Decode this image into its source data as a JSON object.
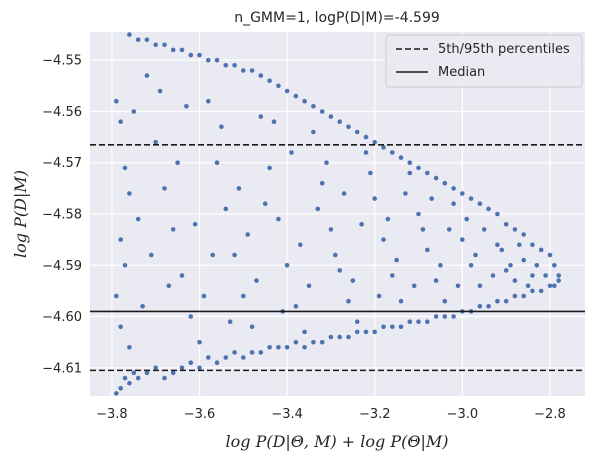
{
  "chart_data": {
    "type": "scatter",
    "title": "n_GMM=1, logP(D|M)=-4.599",
    "xlabel": "log P(D|Θ, M) + log P(Θ|M)",
    "ylabel": "log P(D|M)",
    "xlim": [
      -3.85,
      -2.72
    ],
    "ylim": [
      -4.6155,
      -4.5445
    ],
    "xticks": [
      -3.8,
      -3.6,
      -3.4,
      -3.2,
      -3.0,
      -2.8
    ],
    "xtick_labels": [
      "−3.8",
      "−3.6",
      "−3.4",
      "−3.2",
      "−3.0",
      "−2.8"
    ],
    "yticks": [
      -4.61,
      -4.6,
      -4.59,
      -4.58,
      -4.57,
      -4.56,
      -4.55
    ],
    "ytick_labels": [
      "−4.61",
      "−4.60",
      "−4.59",
      "−4.58",
      "−4.57",
      "−4.56",
      "−4.55"
    ],
    "grid": true,
    "legend_position": "top-right",
    "reference_lines": [
      {
        "name": "5th/95th percentiles",
        "y": -4.5665,
        "style": "dashed"
      },
      {
        "name": "5th/95th percentiles",
        "y": -4.6105,
        "style": "dashed"
      },
      {
        "name": "Median",
        "y": -4.599,
        "style": "solid"
      }
    ],
    "legend": [
      {
        "label": "5th/95th percentiles",
        "style": "dashed"
      },
      {
        "label": "Median",
        "style": "solid"
      }
    ],
    "colors": {
      "points": "#4c72b0",
      "plot_background": "#eaeaf2",
      "reference_lines": "#1a1a1a"
    },
    "series": [
      {
        "values_note_xy": "x,y pairs",
        "points": [
          [
            -3.79,
            -4.615
          ],
          [
            -3.78,
            -4.614
          ],
          [
            -3.77,
            -4.612
          ],
          [
            -3.76,
            -4.613
          ],
          [
            -3.75,
            -4.611
          ],
          [
            -3.74,
            -4.612
          ],
          [
            -3.72,
            -4.611
          ],
          [
            -3.7,
            -4.61
          ],
          [
            -3.68,
            -4.612
          ],
          [
            -3.66,
            -4.611
          ],
          [
            -3.64,
            -4.61
          ],
          [
            -3.62,
            -4.609
          ],
          [
            -3.6,
            -4.61
          ],
          [
            -3.58,
            -4.608
          ],
          [
            -3.56,
            -4.609
          ],
          [
            -3.54,
            -4.608
          ],
          [
            -3.52,
            -4.607
          ],
          [
            -3.5,
            -4.608
          ],
          [
            -3.48,
            -4.607
          ],
          [
            -3.46,
            -4.607
          ],
          [
            -3.44,
            -4.606
          ],
          [
            -3.42,
            -4.606
          ],
          [
            -3.4,
            -4.606
          ],
          [
            -3.38,
            -4.605
          ],
          [
            -3.36,
            -4.606
          ],
          [
            -3.34,
            -4.605
          ],
          [
            -3.32,
            -4.605
          ],
          [
            -3.3,
            -4.604
          ],
          [
            -3.28,
            -4.604
          ],
          [
            -3.26,
            -4.604
          ],
          [
            -3.24,
            -4.603
          ],
          [
            -3.22,
            -4.603
          ],
          [
            -3.2,
            -4.603
          ],
          [
            -3.18,
            -4.602
          ],
          [
            -3.16,
            -4.602
          ],
          [
            -3.14,
            -4.602
          ],
          [
            -3.12,
            -4.601
          ],
          [
            -3.1,
            -4.601
          ],
          [
            -3.08,
            -4.601
          ],
          [
            -3.06,
            -4.6
          ],
          [
            -3.04,
            -4.6
          ],
          [
            -3.02,
            -4.6
          ],
          [
            -3.0,
            -4.599
          ],
          [
            -2.98,
            -4.599
          ],
          [
            -2.96,
            -4.598
          ],
          [
            -2.94,
            -4.598
          ],
          [
            -2.92,
            -4.597
          ],
          [
            -2.9,
            -4.597
          ],
          [
            -2.88,
            -4.596
          ],
          [
            -2.86,
            -4.596
          ],
          [
            -2.84,
            -4.595
          ],
          [
            -2.82,
            -4.595
          ],
          [
            -2.8,
            -4.594
          ],
          [
            -2.79,
            -4.594
          ],
          [
            -2.78,
            -4.593
          ],
          [
            -2.78,
            -4.592
          ],
          [
            -2.79,
            -4.59
          ],
          [
            -2.8,
            -4.588
          ],
          [
            -2.82,
            -4.587
          ],
          [
            -2.84,
            -4.586
          ],
          [
            -2.86,
            -4.584
          ],
          [
            -2.88,
            -4.583
          ],
          [
            -2.9,
            -4.582
          ],
          [
            -2.92,
            -4.58
          ],
          [
            -2.94,
            -4.579
          ],
          [
            -2.96,
            -4.578
          ],
          [
            -2.98,
            -4.577
          ],
          [
            -3.0,
            -4.576
          ],
          [
            -3.02,
            -4.575
          ],
          [
            -3.04,
            -4.574
          ],
          [
            -3.06,
            -4.573
          ],
          [
            -3.08,
            -4.572
          ],
          [
            -3.1,
            -4.571
          ],
          [
            -3.12,
            -4.57
          ],
          [
            -3.14,
            -4.569
          ],
          [
            -3.16,
            -4.568
          ],
          [
            -3.18,
            -4.567
          ],
          [
            -3.2,
            -4.566
          ],
          [
            -3.22,
            -4.565
          ],
          [
            -3.24,
            -4.564
          ],
          [
            -3.26,
            -4.563
          ],
          [
            -3.28,
            -4.562
          ],
          [
            -3.3,
            -4.561
          ],
          [
            -3.32,
            -4.56
          ],
          [
            -3.34,
            -4.559
          ],
          [
            -3.36,
            -4.558
          ],
          [
            -3.38,
            -4.557
          ],
          [
            -3.4,
            -4.556
          ],
          [
            -3.42,
            -4.555
          ],
          [
            -3.44,
            -4.554
          ],
          [
            -3.46,
            -4.553
          ],
          [
            -3.48,
            -4.552
          ],
          [
            -3.5,
            -4.552
          ],
          [
            -3.52,
            -4.551
          ],
          [
            -3.54,
            -4.551
          ],
          [
            -3.56,
            -4.55
          ],
          [
            -3.58,
            -4.55
          ],
          [
            -3.6,
            -4.549
          ],
          [
            -3.62,
            -4.549
          ],
          [
            -3.64,
            -4.548
          ],
          [
            -3.66,
            -4.548
          ],
          [
            -3.68,
            -4.547
          ],
          [
            -3.7,
            -4.547
          ],
          [
            -3.72,
            -4.546
          ],
          [
            -3.74,
            -4.546
          ],
          [
            -3.76,
            -4.545
          ],
          [
            -3.79,
            -4.558
          ],
          [
            -3.78,
            -4.562
          ],
          [
            -3.77,
            -4.571
          ],
          [
            -3.76,
            -4.576
          ],
          [
            -3.78,
            -4.585
          ],
          [
            -3.77,
            -4.59
          ],
          [
            -3.79,
            -4.596
          ],
          [
            -3.78,
            -4.602
          ],
          [
            -3.76,
            -4.606
          ],
          [
            -3.72,
            -4.553
          ],
          [
            -3.7,
            -4.566
          ],
          [
            -3.68,
            -4.575
          ],
          [
            -3.66,
            -4.583
          ],
          [
            -3.64,
            -4.592
          ],
          [
            -3.62,
            -4.6
          ],
          [
            -3.6,
            -4.605
          ],
          [
            -3.58,
            -4.558
          ],
          [
            -3.56,
            -4.57
          ],
          [
            -3.54,
            -4.579
          ],
          [
            -3.52,
            -4.588
          ],
          [
            -3.5,
            -4.596
          ],
          [
            -3.48,
            -4.602
          ],
          [
            -3.46,
            -4.561
          ],
          [
            -3.44,
            -4.571
          ],
          [
            -3.42,
            -4.581
          ],
          [
            -3.4,
            -4.59
          ],
          [
            -3.38,
            -4.598
          ],
          [
            -3.36,
            -4.603
          ],
          [
            -3.34,
            -4.564
          ],
          [
            -3.32,
            -4.574
          ],
          [
            -3.3,
            -4.583
          ],
          [
            -3.28,
            -4.591
          ],
          [
            -3.26,
            -4.597
          ],
          [
            -3.24,
            -4.601
          ],
          [
            -3.22,
            -4.568
          ],
          [
            -3.2,
            -4.577
          ],
          [
            -3.18,
            -4.585
          ],
          [
            -3.16,
            -4.592
          ],
          [
            -3.14,
            -4.597
          ],
          [
            -3.12,
            -4.572
          ],
          [
            -3.1,
            -4.58
          ],
          [
            -3.08,
            -4.587
          ],
          [
            -3.06,
            -4.593
          ],
          [
            -3.04,
            -4.597
          ],
          [
            -3.02,
            -4.578
          ],
          [
            -3.0,
            -4.585
          ],
          [
            -2.98,
            -4.59
          ],
          [
            -2.96,
            -4.594
          ],
          [
            -2.92,
            -4.586
          ],
          [
            -2.9,
            -4.591
          ],
          [
            -2.88,
            -4.593
          ],
          [
            -2.86,
            -4.589
          ],
          [
            -2.84,
            -4.592
          ],
          [
            -3.75,
            -4.56
          ],
          [
            -3.74,
            -4.581
          ],
          [
            -3.73,
            -4.598
          ],
          [
            -3.71,
            -4.588
          ],
          [
            -3.69,
            -4.556
          ],
          [
            -3.67,
            -4.594
          ],
          [
            -3.65,
            -4.57
          ],
          [
            -3.63,
            -4.559
          ],
          [
            -3.61,
            -4.582
          ],
          [
            -3.59,
            -4.596
          ],
          [
            -3.57,
            -4.588
          ],
          [
            -3.55,
            -4.563
          ],
          [
            -3.53,
            -4.601
          ],
          [
            -3.51,
            -4.575
          ],
          [
            -3.49,
            -4.584
          ],
          [
            -3.47,
            -4.593
          ],
          [
            -3.45,
            -4.578
          ],
          [
            -3.43,
            -4.562
          ],
          [
            -3.41,
            -4.599
          ],
          [
            -3.39,
            -4.568
          ],
          [
            -3.37,
            -4.586
          ],
          [
            -3.35,
            -4.594
          ],
          [
            -3.33,
            -4.579
          ],
          [
            -3.31,
            -4.57
          ],
          [
            -3.29,
            -4.588
          ],
          [
            -3.27,
            -4.576
          ],
          [
            -3.25,
            -4.593
          ],
          [
            -3.23,
            -4.582
          ],
          [
            -3.21,
            -4.572
          ],
          [
            -3.19,
            -4.596
          ],
          [
            -3.17,
            -4.581
          ],
          [
            -3.15,
            -4.589
          ],
          [
            -3.13,
            -4.576
          ],
          [
            -3.11,
            -4.594
          ],
          [
            -3.09,
            -4.583
          ],
          [
            -3.07,
            -4.577
          ],
          [
            -3.05,
            -4.59
          ],
          [
            -3.03,
            -4.583
          ],
          [
            -3.01,
            -4.594
          ],
          [
            -2.99,
            -4.581
          ],
          [
            -2.97,
            -4.588
          ],
          [
            -2.95,
            -4.583
          ],
          [
            -2.93,
            -4.592
          ],
          [
            -2.91,
            -4.587
          ],
          [
            -2.89,
            -4.59
          ],
          [
            -2.87,
            -4.586
          ],
          [
            -2.85,
            -4.594
          ],
          [
            -2.83,
            -4.59
          ],
          [
            -2.81,
            -4.592
          ]
        ]
      }
    ]
  }
}
